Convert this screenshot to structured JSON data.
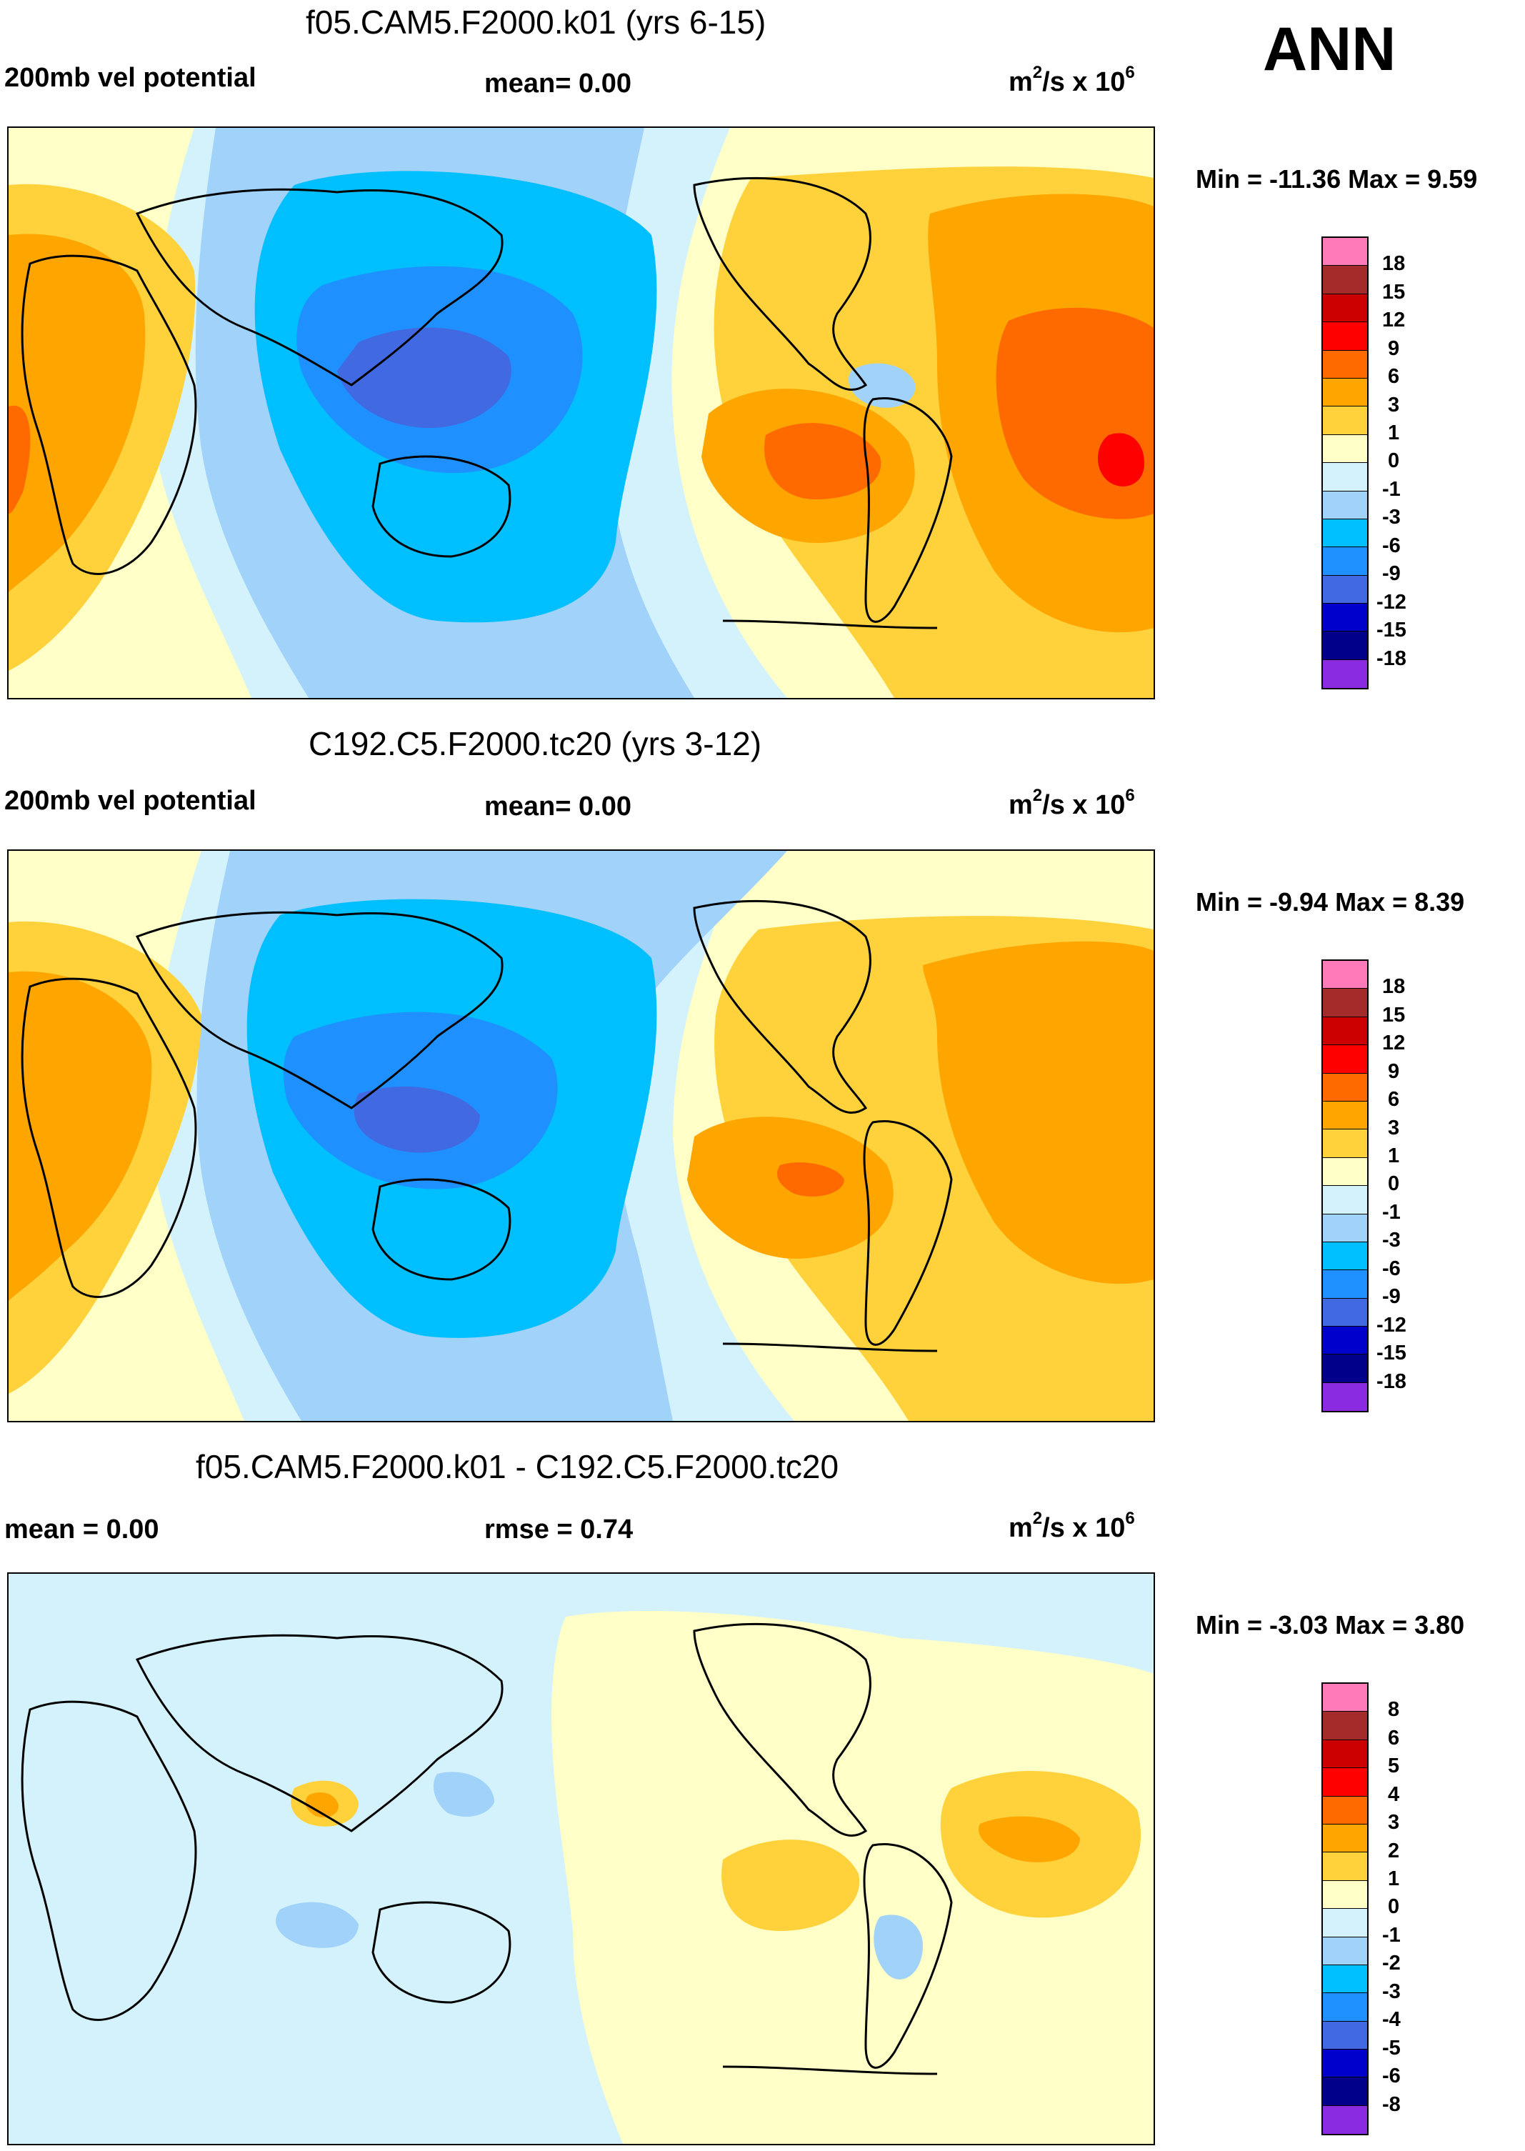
{
  "season": "ANN",
  "panels": [
    {
      "title": "f05.CAM5.F2000.k01 (yrs 6-15)",
      "left_label": "200mb vel potential",
      "center_label": "mean=   0.00",
      "units_base": "m",
      "units_sup": "2",
      "units_mid": "/s x 10",
      "units_sup2": "6",
      "minmax": "Min = -11.36 Max =   9.59",
      "colorbar_labels": [
        "18",
        "15",
        "12",
        "9",
        "6",
        "3",
        "1",
        "0",
        "-1",
        "-3",
        "-6",
        "-9",
        "-12",
        "-15",
        "-18"
      ]
    },
    {
      "title": "C192.C5.F2000.tc20 (yrs 3-12)",
      "left_label": "200mb vel potential",
      "center_label": "mean=   0.00",
      "units_base": "m",
      "units_sup": "2",
      "units_mid": "/s x 10",
      "units_sup2": "6",
      "minmax": "Min =  -9.94 Max =   8.39",
      "colorbar_labels": [
        "18",
        "15",
        "12",
        "9",
        "6",
        "3",
        "1",
        "0",
        "-1",
        "-3",
        "-6",
        "-9",
        "-12",
        "-15",
        "-18"
      ]
    },
    {
      "title": "f05.CAM5.F2000.k01 - C192.C5.F2000.tc20",
      "left_label": "mean =   0.00",
      "center_label": "rmse =   0.74",
      "units_base": "m",
      "units_sup": "2",
      "units_mid": "/s x 10",
      "units_sup2": "6",
      "minmax": "Min =  -3.03 Max =   3.80",
      "colorbar_labels": [
        "8",
        "6",
        "5",
        "4",
        "3",
        "2",
        "1",
        "0",
        "-1",
        "-2",
        "-3",
        "-4",
        "-5",
        "-6",
        "-8"
      ]
    }
  ],
  "colors": {
    "c_pink": "#ff7ab8",
    "c_darkred": "#a52a2a",
    "c_red2": "#cc0000",
    "c_red": "#ff0000",
    "c_orange_dk": "#ff6a00",
    "c_orange": "#ffa500",
    "c_gold": "#ffd23c",
    "c_cream": "#ffffc8",
    "c_paleblue": "#d4f2fc",
    "c_lightblue": "#a0d2fa",
    "c_skyblue": "#00bfff",
    "c_dodger": "#1e90ff",
    "c_royal": "#4169e1",
    "c_blue": "#0000cd",
    "c_navy": "#00008b",
    "c_violet": "#8a2be2"
  }
}
